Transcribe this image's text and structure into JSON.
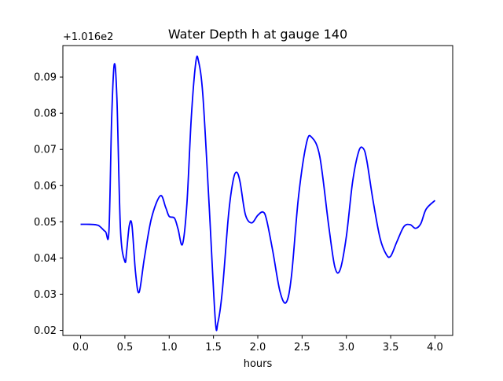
{
  "chart_data": {
    "type": "line",
    "title": "Water Depth h at gauge 140",
    "xlabel": "hours",
    "ylabel": "",
    "offset_text": "+1.016e2",
    "xlim": [
      -0.2,
      4.2
    ],
    "ylim": [
      0.0186,
      0.0987
    ],
    "xticks": [
      0.0,
      0.5,
      1.0,
      1.5,
      2.0,
      2.5,
      3.0,
      3.5,
      4.0
    ],
    "xtick_labels": [
      "0.0",
      "0.5",
      "1.0",
      "1.5",
      "2.0",
      "2.5",
      "3.0",
      "3.5",
      "4.0"
    ],
    "yticks": [
      0.02,
      0.03,
      0.04,
      0.05,
      0.06,
      0.07,
      0.08,
      0.09
    ],
    "ytick_labels": [
      "0.02",
      "0.03",
      "0.04",
      "0.05",
      "0.06",
      "0.07",
      "0.08",
      "0.09"
    ],
    "grid": false,
    "series": [
      {
        "color": "#0000ff",
        "x": [
          0.0,
          0.1,
          0.2,
          0.28,
          0.32,
          0.35,
          0.38,
          0.41,
          0.45,
          0.5,
          0.52,
          0.55,
          0.58,
          0.62,
          0.66,
          0.72,
          0.8,
          0.9,
          0.96,
          1.0,
          1.06,
          1.1,
          1.15,
          1.2,
          1.25,
          1.3,
          1.33,
          1.38,
          1.45,
          1.52,
          1.55,
          1.6,
          1.67,
          1.72,
          1.76,
          1.8,
          1.86,
          1.93,
          2.0,
          2.06,
          2.1,
          2.17,
          2.25,
          2.32,
          2.38,
          2.46,
          2.55,
          2.61,
          2.7,
          2.8,
          2.87,
          2.93,
          3.0,
          3.07,
          3.14,
          3.19,
          3.23,
          3.3,
          3.38,
          3.45,
          3.5,
          3.57,
          3.65,
          3.72,
          3.78,
          3.84,
          3.9,
          4.0
        ],
        "y": [
          0.0493,
          0.0493,
          0.049,
          0.0473,
          0.0475,
          0.078,
          0.0935,
          0.084,
          0.048,
          0.039,
          0.042,
          0.049,
          0.049,
          0.036,
          0.0305,
          0.04,
          0.051,
          0.0572,
          0.054,
          0.0515,
          0.051,
          0.048,
          0.0438,
          0.055,
          0.079,
          0.094,
          0.0945,
          0.085,
          0.055,
          0.023,
          0.0222,
          0.031,
          0.052,
          0.0612,
          0.0637,
          0.061,
          0.052,
          0.0497,
          0.0518,
          0.0527,
          0.0505,
          0.0418,
          0.0308,
          0.0277,
          0.035,
          0.057,
          0.0718,
          0.0733,
          0.068,
          0.049,
          0.0375,
          0.0368,
          0.046,
          0.061,
          0.0695,
          0.0703,
          0.067,
          0.056,
          0.0455,
          0.041,
          0.0405,
          0.0445,
          0.0487,
          0.0492,
          0.0482,
          0.0495,
          0.0535,
          0.0559
        ]
      }
    ]
  }
}
